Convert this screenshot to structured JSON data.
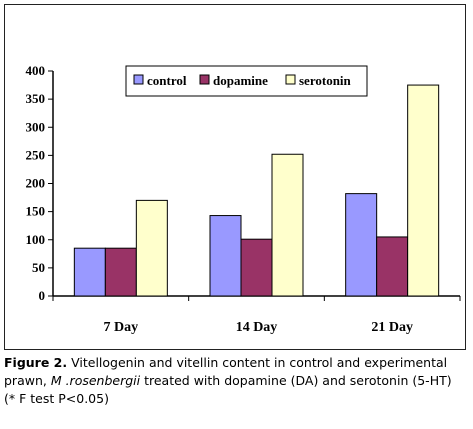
{
  "chart_data": {
    "type": "bar",
    "categories": [
      "7 Day",
      "14 Day",
      "21 Day"
    ],
    "series": [
      {
        "name": "control",
        "values": [
          85,
          143,
          182
        ],
        "color": "#9999ff"
      },
      {
        "name": "dopamine",
        "values": [
          85,
          101,
          105
        ],
        "color": "#993366"
      },
      {
        "name": "serotonin",
        "values": [
          170,
          252,
          375
        ],
        "color": "#ffffcc"
      }
    ],
    "ylim": [
      0,
      400
    ],
    "yticks": [
      "0",
      "50",
      "100",
      "150",
      "200",
      "250",
      "300",
      "350",
      "400"
    ],
    "grid": false,
    "legend_position": "top"
  },
  "caption": {
    "label": "Figure 2.",
    "text_before": " Vitellogenin and vitellin content in control and experimental prawn, ",
    "species": "M .rosenbergii",
    "text_after": " treated with dopamine (DA) and serotonin (5-HT) (* F test P<0.05)"
  }
}
